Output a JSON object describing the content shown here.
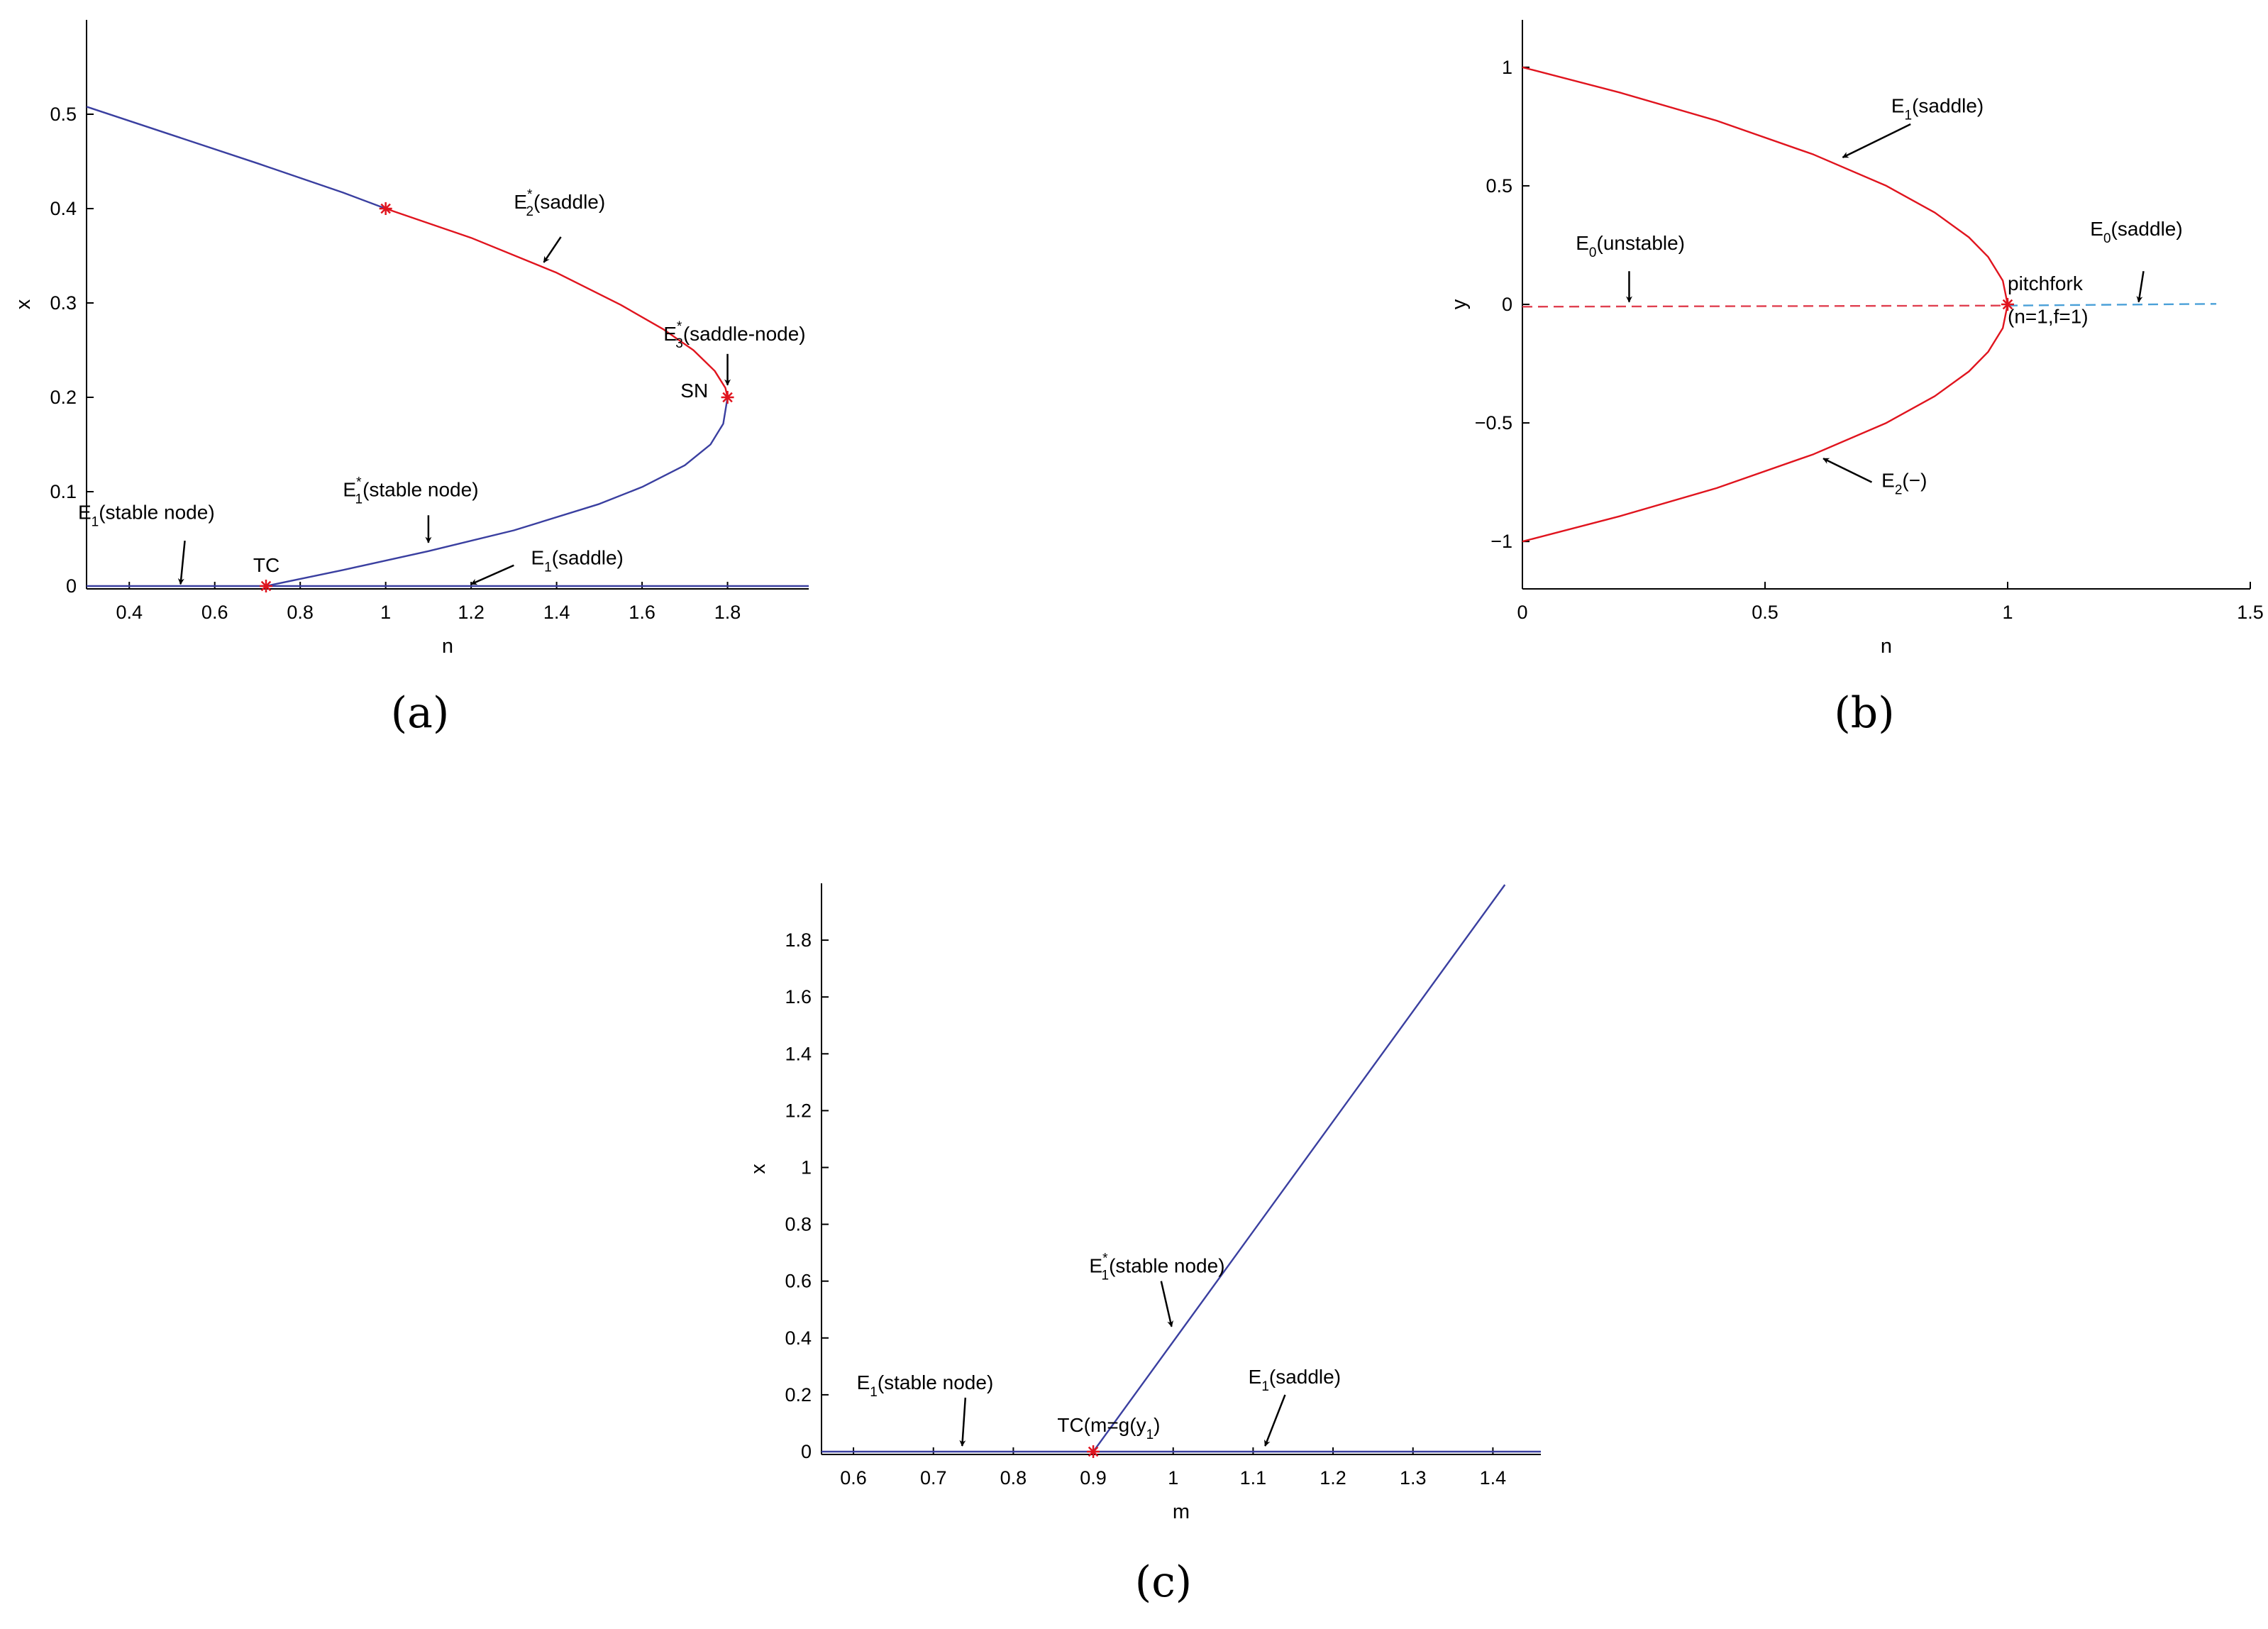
{
  "chart_data": [
    {
      "id": "a",
      "type": "line",
      "caption": "(a)",
      "xlabel": "n",
      "ylabel": "x",
      "xlim": [
        0.3,
        1.99
      ],
      "ylim": [
        -0.003,
        0.6
      ],
      "xticks": [
        0.4,
        0.6,
        0.8,
        1,
        1.2,
        1.4,
        1.6,
        1.8
      ],
      "xtick_labels": [
        "0.4",
        "0.6",
        "0.8",
        "1",
        "1.2",
        "1.4",
        "1.6",
        "1.8"
      ],
      "yticks": [
        0,
        0.1,
        0.2,
        0.3,
        0.4,
        0.5
      ],
      "ytick_labels": [
        "0",
        "0.1",
        "0.2",
        "0.3",
        "0.4",
        "0.5"
      ],
      "colors": {
        "blue": "#3a3fa0",
        "red": "#e0141e"
      },
      "series": [
        {
          "color": "blue",
          "style": "solid",
          "points": [
            [
              0.3,
              0.508
            ],
            [
              0.5,
              0.478
            ],
            [
              0.7,
              0.448
            ],
            [
              0.9,
              0.417
            ],
            [
              1.0,
              0.4
            ]
          ]
        },
        {
          "color": "red",
          "style": "solid",
          "points": [
            [
              1.0,
              0.4
            ],
            [
              1.2,
              0.369
            ],
            [
              1.4,
              0.332
            ],
            [
              1.55,
              0.298
            ],
            [
              1.65,
              0.272
            ],
            [
              1.72,
              0.25
            ],
            [
              1.77,
              0.228
            ],
            [
              1.795,
              0.21
            ],
            [
              1.8,
              0.2
            ]
          ]
        },
        {
          "color": "blue",
          "style": "solid",
          "points": [
            [
              0.72,
              0
            ],
            [
              0.9,
              0.017
            ],
            [
              1.1,
              0.037
            ],
            [
              1.3,
              0.059
            ],
            [
              1.5,
              0.087
            ],
            [
              1.6,
              0.105
            ],
            [
              1.7,
              0.128
            ],
            [
              1.76,
              0.15
            ],
            [
              1.79,
              0.172
            ],
            [
              1.8,
              0.2
            ]
          ]
        },
        {
          "color": "blue",
          "style": "solid",
          "points": [
            [
              0.3,
              0
            ],
            [
              1.99,
              0
            ]
          ]
        }
      ],
      "points": [
        {
          "x": 1.0,
          "y": 0.4,
          "marker": "star"
        },
        {
          "x": 1.8,
          "y": 0.2,
          "marker": "star"
        },
        {
          "x": 0.72,
          "y": 0,
          "marker": "star"
        }
      ],
      "annotations": [
        {
          "main": "E",
          "sub": "2",
          "sup": "*",
          "rest": "(saddle)",
          "tx": 1.3,
          "ty": 0.4,
          "ax0": 1.41,
          "ay0": 0.37,
          "ax1": 1.37,
          "ay1": 0.343
        },
        {
          "main": "E",
          "sub": "3",
          "sup": "*",
          "rest": "(saddle-node)",
          "tx": 1.65,
          "ty": 0.26,
          "ax0": 1.8,
          "ay0": 0.246,
          "ax1": 1.8,
          "ay1": 0.213
        },
        {
          "main": "SN",
          "sub": "",
          "sup": "",
          "rest": "",
          "tx": 1.69,
          "ty": 0.2,
          "ax0": null,
          "ay0": null,
          "ax1": null,
          "ay1": null
        },
        {
          "main": "E",
          "sub": "1",
          "sup": "*",
          "rest": "(stable node)",
          "tx": 0.9,
          "ty": 0.095,
          "ax0": 1.1,
          "ay0": 0.075,
          "ax1": 1.1,
          "ay1": 0.046
        },
        {
          "main": "E",
          "sub": "1",
          "sup": "",
          "rest": "(stable node)",
          "tx": 0.28,
          "ty": 0.071,
          "ax0": 0.53,
          "ay0": 0.048,
          "ax1": 0.52,
          "ay1": 0.002
        },
        {
          "main": "TC",
          "sub": "",
          "sup": "",
          "rest": "",
          "tx": 0.69,
          "ty": 0.015,
          "ax0": null,
          "ay0": null,
          "ax1": null,
          "ay1": null
        },
        {
          "main": "E",
          "sub": "1",
          "sup": "",
          "rest": "(saddle)",
          "tx": 1.34,
          "ty": 0.023,
          "ax0": 1.3,
          "ay0": 0.022,
          "ax1": 1.2,
          "ay1": 0.002
        }
      ]
    },
    {
      "id": "b",
      "type": "line",
      "caption": "(b)",
      "xlabel": "n",
      "ylabel": "y",
      "xlim": [
        0,
        1.5
      ],
      "ylim": [
        -1.2,
        1.2
      ],
      "xticks": [
        0,
        0.5,
        1,
        1.5
      ],
      "xtick_labels": [
        "0",
        "0.5",
        "1",
        "1.5"
      ],
      "yticks": [
        -1,
        -0.5,
        0,
        0.5,
        1
      ],
      "ytick_labels": [
        "−1",
        "−0.5",
        "0",
        "0.5",
        "1"
      ],
      "colors": {
        "red": "#e0141e",
        "dashred": "#e04050",
        "dashblue": "#4aa0d8"
      },
      "series": [
        {
          "color": "red",
          "style": "solid",
          "points": [
            [
              0,
              1
            ],
            [
              0.2,
              0.894
            ],
            [
              0.4,
              0.775
            ],
            [
              0.6,
              0.632
            ],
            [
              0.75,
              0.5
            ],
            [
              0.85,
              0.387
            ],
            [
              0.92,
              0.283
            ],
            [
              0.96,
              0.2
            ],
            [
              0.99,
              0.1
            ],
            [
              1.0,
              0
            ]
          ]
        },
        {
          "color": "red",
          "style": "solid",
          "points": [
            [
              0,
              -1
            ],
            [
              0.2,
              -0.894
            ],
            [
              0.4,
              -0.775
            ],
            [
              0.6,
              -0.632
            ],
            [
              0.75,
              -0.5
            ],
            [
              0.85,
              -0.387
            ],
            [
              0.92,
              -0.283
            ],
            [
              0.96,
              -0.2
            ],
            [
              0.99,
              -0.1
            ],
            [
              1.0,
              0
            ]
          ]
        },
        {
          "color": "dashred",
          "style": "dashed",
          "points": [
            [
              0,
              -0.01
            ],
            [
              1.0,
              -0.005
            ]
          ]
        },
        {
          "color": "dashblue",
          "style": "dashed",
          "points": [
            [
              1.0,
              -0.005
            ],
            [
              1.43,
              0.002
            ]
          ]
        }
      ],
      "points": [
        {
          "x": 1.0,
          "y": 0,
          "marker": "star"
        }
      ],
      "annotations": [
        {
          "main": "E",
          "sub": "1",
          "sup": "",
          "rest": "(saddle)",
          "tx": 0.76,
          "ty": 0.81,
          "ax0": 0.8,
          "ay0": 0.76,
          "ax1": 0.66,
          "ay1": 0.62
        },
        {
          "main": "E",
          "sub": "0",
          "sup": "",
          "rest": "(unstable)",
          "tx": 0.11,
          "ty": 0.23,
          "ax0": 0.22,
          "ay0": 0.14,
          "ax1": 0.22,
          "ay1": 0.01
        },
        {
          "main": "E",
          "sub": "0",
          "sup": "",
          "rest": "(saddle)",
          "tx": 1.17,
          "ty": 0.29,
          "ax0": 1.28,
          "ay0": 0.14,
          "ax1": 1.27,
          "ay1": 0.01
        },
        {
          "main": "pitchfork",
          "sub": "",
          "sup": "",
          "rest": "",
          "tx": 1.0,
          "ty": 0.06,
          "ax0": null,
          "ay0": null,
          "ax1": null,
          "ay1": null
        },
        {
          "main": "(n=1,f=1)",
          "sub": "",
          "sup": "",
          "rest": "",
          "tx": 1.0,
          "ty": -0.08,
          "ax0": null,
          "ay0": null,
          "ax1": null,
          "ay1": null
        },
        {
          "main": "E",
          "sub": "2",
          "sup": "",
          "rest": "(−)",
          "tx": 0.74,
          "ty": -0.77,
          "ax0": 0.72,
          "ay0": -0.75,
          "ax1": 0.62,
          "ay1": -0.65
        }
      ]
    },
    {
      "id": "c",
      "type": "line",
      "caption": "(c)",
      "xlabel": "m",
      "ylabel": "x",
      "xlim": [
        0.56,
        1.46
      ],
      "ylim": [
        -0.01,
        2.0
      ],
      "xticks": [
        0.6,
        0.7,
        0.8,
        0.9,
        1,
        1.1,
        1.2,
        1.3,
        1.4
      ],
      "xtick_labels": [
        "0.6",
        "0.7",
        "0.8",
        "0.9",
        "1",
        "1.1",
        "1.2",
        "1.3",
        "1.4"
      ],
      "yticks": [
        0,
        0.2,
        0.4,
        0.6,
        0.8,
        1,
        1.2,
        1.4,
        1.6,
        1.8
      ],
      "ytick_labels": [
        "0",
        "0.2",
        "0.4",
        "0.6",
        "0.8",
        "1",
        "1.2",
        "1.4",
        "1.6",
        "1.8"
      ],
      "colors": {
        "blue": "#3a3fa0",
        "red": "#e0141e"
      },
      "series": [
        {
          "color": "blue",
          "style": "solid",
          "points": [
            [
              0.9,
              0
            ],
            [
              1.415,
              1.995
            ]
          ]
        },
        {
          "color": "blue",
          "style": "solid",
          "points": [
            [
              0.56,
              0
            ],
            [
              1.46,
              0
            ]
          ]
        }
      ],
      "points": [
        {
          "x": 0.9,
          "y": 0,
          "marker": "star"
        }
      ],
      "annotations": [
        {
          "main": "E",
          "sub": "1",
          "sup": "*",
          "rest": "(stable node)",
          "tx": 0.895,
          "ty": 0.63,
          "ax0": 0.985,
          "ay0": 0.6,
          "ax1": 0.998,
          "ay1": 0.44
        },
        {
          "main": "E",
          "sub": "1",
          "sup": "",
          "rest": "(stable node)",
          "tx": 0.604,
          "ty": 0.22,
          "ax0": 0.74,
          "ay0": 0.19,
          "ax1": 0.736,
          "ay1": 0.02
        },
        {
          "main": "TC(m=g(y",
          "sub": "1",
          "sup": "",
          "rest": ")",
          "tx": 0.855,
          "ty": 0.07,
          "ax0": null,
          "ay0": null,
          "ax1": null,
          "ay1": null
        },
        {
          "main": "E",
          "sub": "1",
          "sup": "",
          "rest": "(saddle)",
          "tx": 1.094,
          "ty": 0.24,
          "ax0": 1.14,
          "ay0": 0.2,
          "ax1": 1.115,
          "ay1": 0.02
        }
      ]
    }
  ]
}
